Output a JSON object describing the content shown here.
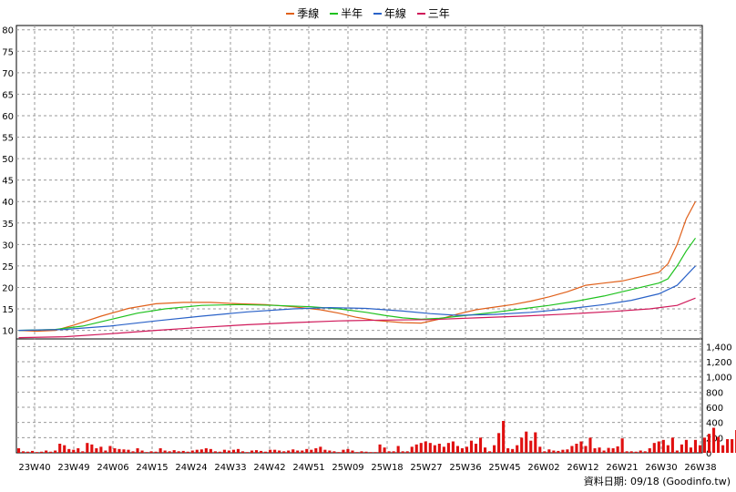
{
  "legend": [
    {
      "label": "季線",
      "color": "#e0601a"
    },
    {
      "label": "半年",
      "color": "#1fc21f"
    },
    {
      "label": "年線",
      "color": "#2a62c8"
    },
    {
      "label": "三年",
      "color": "#d0195a"
    }
  ],
  "footer": "資料日期: 09/18 (Goodinfo.tw)",
  "chart_data": [
    {
      "type": "candlestick",
      "title": "",
      "ylim": [
        8,
        81
      ],
      "yticks": [
        "80",
        "75",
        "70",
        "65",
        "60",
        "55",
        "50",
        "45",
        "40",
        "35",
        "30",
        "25",
        "20",
        "15",
        "10"
      ],
      "xticks": [
        "23W40",
        "23W49",
        "24W06",
        "24W15",
        "24W24",
        "24W33",
        "24W42",
        "24W51",
        "25W09",
        "25W18",
        "25W27",
        "25W36",
        "25W45",
        "26W02",
        "26W12",
        "26W21",
        "26W30",
        "26W38"
      ],
      "grid": true,
      "series": [
        {
          "name": "季線",
          "type": "line",
          "values": [
            [
              0,
              10.0
            ],
            [
              4,
              9.8
            ],
            [
              8,
              10.0
            ],
            [
              12,
              11.2
            ],
            [
              18,
              13.3
            ],
            [
              24,
              15.1
            ],
            [
              30,
              16.2
            ],
            [
              36,
              16.5
            ],
            [
              42,
              16.5
            ],
            [
              48,
              16.2
            ],
            [
              54,
              16.0
            ],
            [
              60,
              15.5
            ],
            [
              66,
              14.8
            ],
            [
              70,
              14.0
            ],
            [
              74,
              13.0
            ],
            [
              78,
              12.3
            ],
            [
              84,
              11.8
            ],
            [
              88,
              11.7
            ],
            [
              92,
              12.6
            ],
            [
              96,
              13.8
            ],
            [
              100,
              14.8
            ],
            [
              104,
              15.4
            ],
            [
              108,
              16.0
            ],
            [
              112,
              16.8
            ],
            [
              116,
              17.8
            ],
            [
              120,
              19.0
            ],
            [
              124,
              20.5
            ],
            [
              128,
              21.0
            ],
            [
              132,
              21.5
            ],
            [
              136,
              22.5
            ],
            [
              140,
              23.5
            ],
            [
              142,
              25.5
            ],
            [
              144,
              30
            ],
            [
              146,
              36
            ],
            [
              148,
              40
            ]
          ]
        },
        {
          "name": "半年",
          "type": "line",
          "values": [
            [
              0,
              10.0
            ],
            [
              8,
              10.2
            ],
            [
              14,
              11.0
            ],
            [
              20,
              12.5
            ],
            [
              26,
              14.0
            ],
            [
              32,
              15.0
            ],
            [
              40,
              15.8
            ],
            [
              48,
              16.0
            ],
            [
              56,
              15.8
            ],
            [
              64,
              15.5
            ],
            [
              70,
              15.0
            ],
            [
              76,
              14.2
            ],
            [
              80,
              13.5
            ],
            [
              84,
              12.9
            ],
            [
              88,
              12.6
            ],
            [
              92,
              12.8
            ],
            [
              98,
              13.5
            ],
            [
              104,
              14.2
            ],
            [
              110,
              15.0
            ],
            [
              116,
              15.8
            ],
            [
              122,
              16.8
            ],
            [
              128,
              18.0
            ],
            [
              134,
              19.5
            ],
            [
              138,
              20.5
            ],
            [
              140,
              21.0
            ],
            [
              142,
              22.0
            ],
            [
              144,
              25
            ],
            [
              146,
              28.5
            ],
            [
              148,
              31.5
            ]
          ]
        },
        {
          "name": "年線",
          "type": "line",
          "values": [
            [
              0,
              10.0
            ],
            [
              10,
              10.2
            ],
            [
              20,
              11.0
            ],
            [
              30,
              12.2
            ],
            [
              40,
              13.3
            ],
            [
              50,
              14.3
            ],
            [
              60,
              15.0
            ],
            [
              68,
              15.3
            ],
            [
              76,
              15.1
            ],
            [
              84,
              14.5
            ],
            [
              90,
              13.9
            ],
            [
              96,
              13.5
            ],
            [
              104,
              13.7
            ],
            [
              112,
              14.2
            ],
            [
              120,
              15.0
            ],
            [
              128,
              16.0
            ],
            [
              134,
              17.0
            ],
            [
              140,
              18.5
            ],
            [
              144,
              20.5
            ],
            [
              148,
              25
            ]
          ]
        },
        {
          "name": "三年",
          "type": "line",
          "values": [
            [
              0,
              8.3
            ],
            [
              10,
              8.5
            ],
            [
              20,
              9.2
            ],
            [
              30,
              10.0
            ],
            [
              40,
              10.7
            ],
            [
              50,
              11.3
            ],
            [
              60,
              11.8
            ],
            [
              70,
              12.2
            ],
            [
              80,
              12.4
            ],
            [
              90,
              12.5
            ],
            [
              100,
              12.9
            ],
            [
              110,
              13.3
            ],
            [
              120,
              13.8
            ],
            [
              130,
              14.4
            ],
            [
              138,
              15.0
            ],
            [
              144,
              15.8
            ],
            [
              148,
              17.5
            ]
          ]
        }
      ]
    },
    {
      "type": "bar",
      "title": "Volume",
      "ylim": [
        0,
        1500
      ],
      "yticks": [
        "1,400",
        "1,200",
        "1,000",
        "800",
        "600",
        "400",
        "200",
        "0"
      ],
      "values": [
        60,
        20,
        15,
        25,
        10,
        15,
        30,
        15,
        30,
        120,
        100,
        50,
        40,
        60,
        20,
        130,
        110,
        60,
        80,
        30,
        90,
        60,
        50,
        45,
        40,
        20,
        60,
        30,
        10,
        20,
        15,
        60,
        30,
        20,
        35,
        20,
        25,
        15,
        30,
        40,
        45,
        60,
        50,
        20,
        15,
        40,
        30,
        40,
        50,
        20,
        10,
        30,
        35,
        25,
        15,
        40,
        40,
        30,
        20,
        30,
        45,
        30,
        30,
        50,
        40,
        60,
        80,
        40,
        30,
        20,
        10,
        40,
        50,
        30,
        10,
        20,
        15,
        10,
        10,
        110,
        70,
        20,
        20,
        90,
        20,
        20,
        80,
        110,
        130,
        150,
        130,
        100,
        120,
        80,
        130,
        150,
        90,
        60,
        80,
        160,
        120,
        200,
        70,
        20,
        100,
        260,
        420,
        60,
        50,
        100,
        200,
        280,
        160,
        270,
        80,
        20,
        45,
        30,
        25,
        40,
        45,
        90,
        120,
        150,
        90,
        200,
        60,
        70,
        30,
        65,
        60,
        85,
        190,
        20,
        20,
        15,
        30,
        20,
        60,
        130,
        150,
        170,
        100,
        200,
        30,
        110,
        170,
        70,
        170,
        100,
        200,
        250,
        330,
        210,
        100,
        180,
        180,
        300,
        680,
        250,
        1080,
        770,
        340,
        570,
        780,
        660
      ]
    }
  ]
}
